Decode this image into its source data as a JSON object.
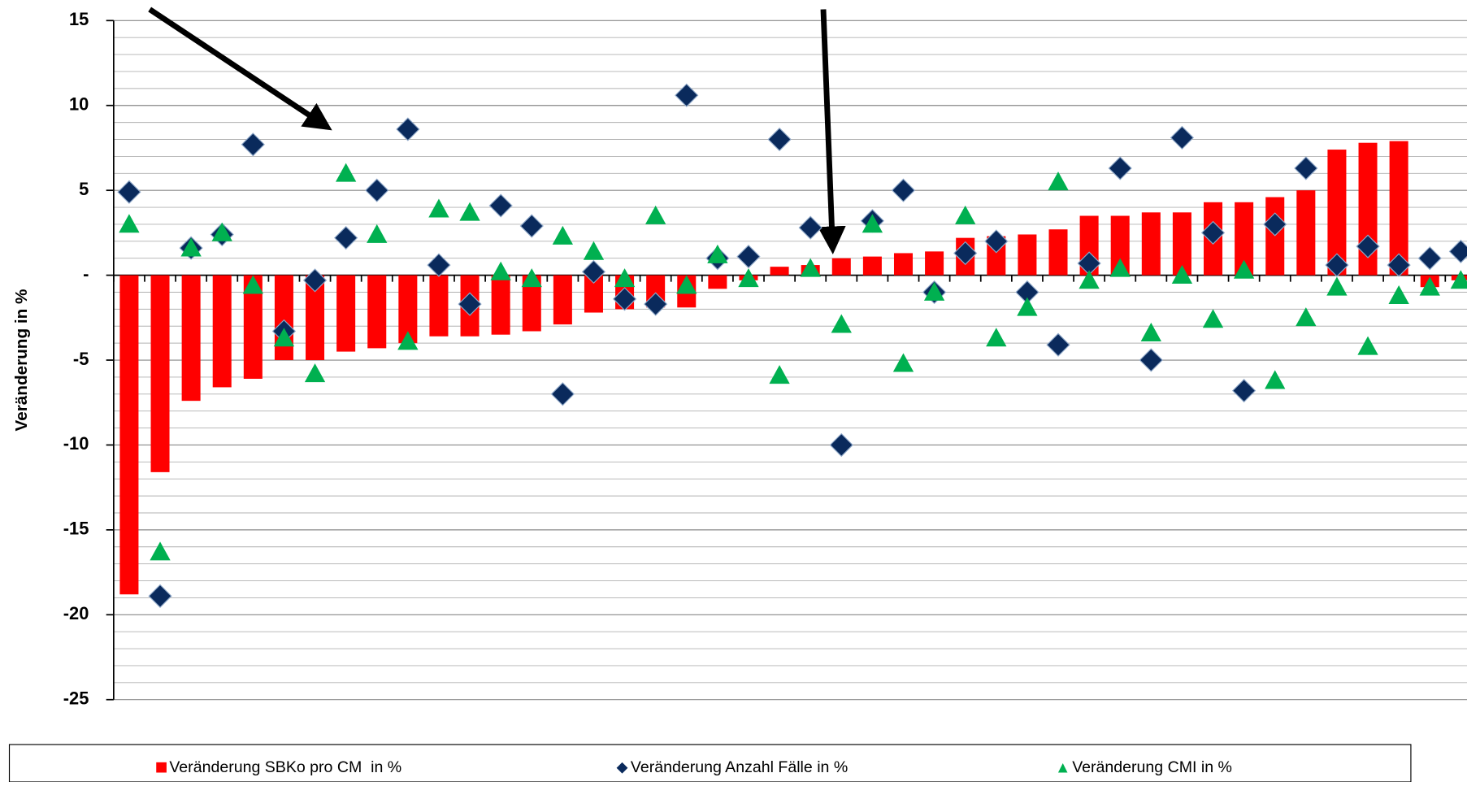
{
  "chart_data": {
    "type": "bar_scatter",
    "ylabel": "Veränderung in %",
    "categories": [
      null,
      null,
      null,
      null,
      null,
      null,
      null,
      null,
      null,
      null,
      null,
      null,
      null,
      null,
      null,
      null,
      null,
      null,
      null,
      null,
      null,
      null,
      null,
      null,
      null,
      null,
      null,
      null,
      null,
      null,
      null,
      null,
      null,
      null,
      null,
      null,
      null,
      null,
      null,
      null,
      null,
      null,
      null,
      null
    ],
    "series": [
      {
        "name": "Veränderung SBKo pro CM  in %",
        "color": "#ff0000",
        "marker": "bar",
        "values": [
          -18.8,
          -11.6,
          -7.4,
          -6.6,
          -6.1,
          -5.0,
          -5.0,
          -4.5,
          -4.3,
          -4.0,
          -3.6,
          -3.6,
          -3.5,
          -3.3,
          -2.9,
          -2.2,
          -2.0,
          -1.9,
          -1.9,
          -0.8,
          -0.3,
          0.5,
          0.6,
          1.0,
          1.1,
          1.3,
          1.4,
          2.2,
          2.3,
          2.4,
          2.7,
          3.5,
          3.5,
          3.7,
          3.7,
          4.3,
          4.3,
          4.6,
          5.0,
          7.4,
          7.8,
          7.9,
          -0.7,
          -0.3
        ]
      },
      {
        "name": "Veränderung Anzahl Fälle in %",
        "color": "#0a2a5c",
        "marker": "diamond",
        "values": [
          4.9,
          -18.9,
          1.6,
          2.4,
          7.7,
          -3.3,
          -0.3,
          2.2,
          5.0,
          8.6,
          0.6,
          -1.7,
          4.1,
          2.9,
          -7.0,
          0.2,
          -1.4,
          -1.7,
          10.6,
          1.0,
          1.1,
          8.0,
          2.8,
          -10.0,
          3.2,
          5.0,
          -1.0,
          1.3,
          2.0,
          -1.0,
          -4.1,
          0.7,
          6.3,
          -5.0,
          8.1,
          2.5,
          -6.8,
          3.0,
          6.3,
          0.6,
          1.7,
          0.6,
          1.0,
          1.4
        ]
      },
      {
        "name": "Veränderung CMI in %",
        "color": "#00b050",
        "marker": "triangle",
        "values": [
          3.0,
          -16.3,
          1.6,
          2.5,
          -0.6,
          -3.7,
          -5.8,
          6.0,
          2.4,
          -3.9,
          3.9,
          3.7,
          0.2,
          -0.2,
          2.3,
          1.4,
          -0.2,
          3.5,
          -0.6,
          1.2,
          -0.2,
          -5.9,
          0.4,
          -2.9,
          3.0,
          -5.2,
          -1.0,
          3.5,
          -3.7,
          -1.9,
          5.5,
          -0.3,
          0.4,
          -3.4,
          0.0,
          -2.6,
          0.3,
          -6.2,
          -2.5,
          -0.7,
          -4.2,
          -1.2,
          -0.7,
          -0.3
        ]
      }
    ],
    "ylim": [
      -25,
      15
    ],
    "yticks": [
      -25,
      -20,
      -15,
      -10,
      -5,
      {
        "value": 0,
        "label": "-"
      },
      5,
      10,
      15
    ],
    "yminor_grid": [
      -24,
      -23,
      -22,
      -21,
      -19,
      -18,
      -17,
      -16,
      -14,
      -13,
      -12,
      -11,
      -9,
      -8,
      -7,
      -6,
      -4,
      -3,
      -2,
      -1,
      1,
      2,
      3,
      4,
      6,
      7,
      8,
      9,
      11,
      12,
      13,
      14
    ],
    "grid": true,
    "legend": "bottom"
  }
}
